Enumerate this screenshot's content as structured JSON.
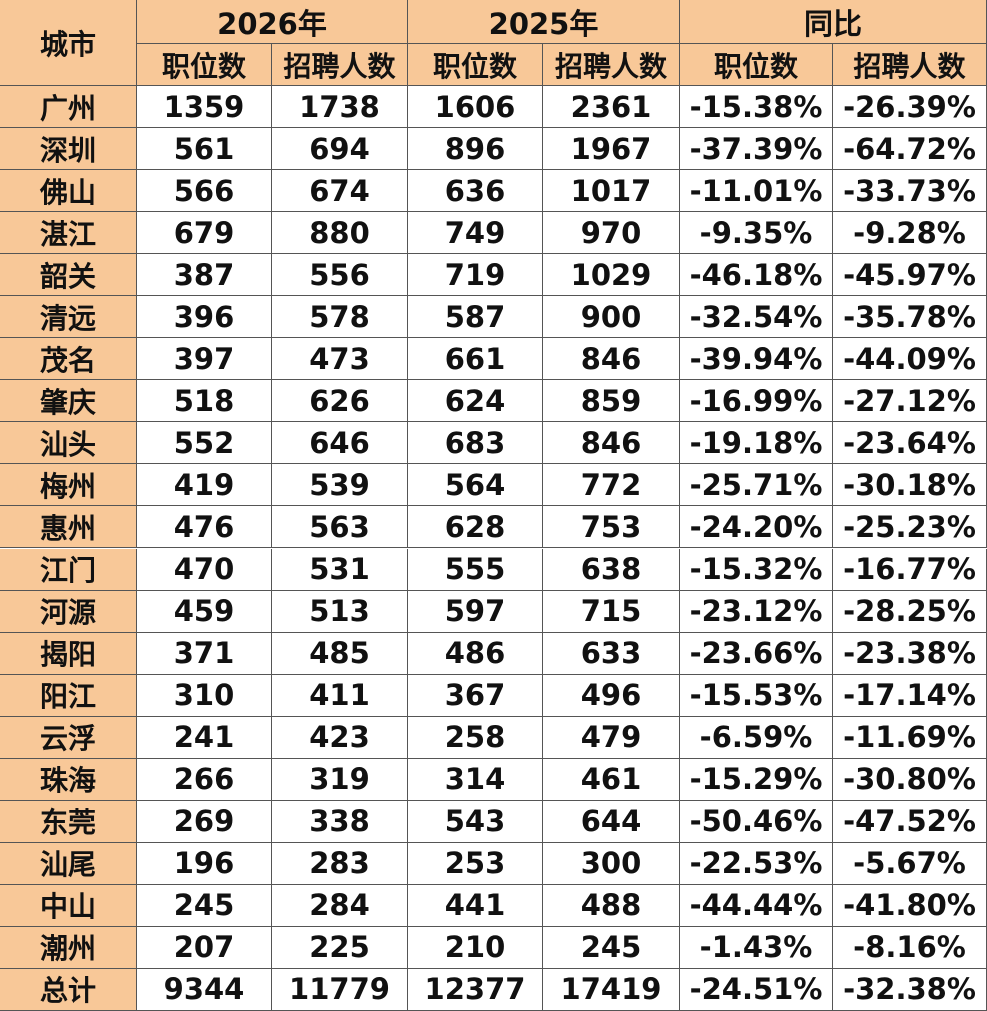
{
  "table": {
    "header": {
      "city": "城市",
      "groups": [
        "2026年",
        "2025年",
        "同比"
      ],
      "subheaders": [
        "职位数",
        "招聘人数",
        "职位数",
        "招聘人数",
        "职位数",
        "招聘人数"
      ]
    },
    "rows": [
      [
        "广州",
        "1359",
        "1738",
        "1606",
        "2361",
        "-15.38%",
        "-26.39%"
      ],
      [
        "深圳",
        "561",
        "694",
        "896",
        "1967",
        "-37.39%",
        "-64.72%"
      ],
      [
        "佛山",
        "566",
        "674",
        "636",
        "1017",
        "-11.01%",
        "-33.73%"
      ],
      [
        "湛江",
        "679",
        "880",
        "749",
        "970",
        "-9.35%",
        "-9.28%"
      ],
      [
        "韶关",
        "387",
        "556",
        "719",
        "1029",
        "-46.18%",
        "-45.97%"
      ],
      [
        "清远",
        "396",
        "578",
        "587",
        "900",
        "-32.54%",
        "-35.78%"
      ],
      [
        "茂名",
        "397",
        "473",
        "661",
        "846",
        "-39.94%",
        "-44.09%"
      ],
      [
        "肇庆",
        "518",
        "626",
        "624",
        "859",
        "-16.99%",
        "-27.12%"
      ],
      [
        "汕头",
        "552",
        "646",
        "683",
        "846",
        "-19.18%",
        "-23.64%"
      ],
      [
        "梅州",
        "419",
        "539",
        "564",
        "772",
        "-25.71%",
        "-30.18%"
      ],
      [
        "惠州",
        "476",
        "563",
        "628",
        "753",
        "-24.20%",
        "-25.23%"
      ],
      [
        "江门",
        "470",
        "531",
        "555",
        "638",
        "-15.32%",
        "-16.77%"
      ],
      [
        "河源",
        "459",
        "513",
        "597",
        "715",
        "-23.12%",
        "-28.25%"
      ],
      [
        "揭阳",
        "371",
        "485",
        "486",
        "633",
        "-23.66%",
        "-23.38%"
      ],
      [
        "阳江",
        "310",
        "411",
        "367",
        "496",
        "-15.53%",
        "-17.14%"
      ],
      [
        "云浮",
        "241",
        "423",
        "258",
        "479",
        "-6.59%",
        "-11.69%"
      ],
      [
        "珠海",
        "266",
        "319",
        "314",
        "461",
        "-15.29%",
        "-30.80%"
      ],
      [
        "东莞",
        "269",
        "338",
        "543",
        "644",
        "-50.46%",
        "-47.52%"
      ],
      [
        "汕尾",
        "196",
        "283",
        "253",
        "300",
        "-22.53%",
        "-5.67%"
      ],
      [
        "中山",
        "245",
        "284",
        "441",
        "488",
        "-44.44%",
        "-41.80%"
      ],
      [
        "潮州",
        "207",
        "225",
        "210",
        "245",
        "-1.43%",
        "-8.16%"
      ],
      [
        "总计",
        "9344",
        "11779",
        "12377",
        "17419",
        "-24.51%",
        "-32.38%"
      ]
    ]
  }
}
